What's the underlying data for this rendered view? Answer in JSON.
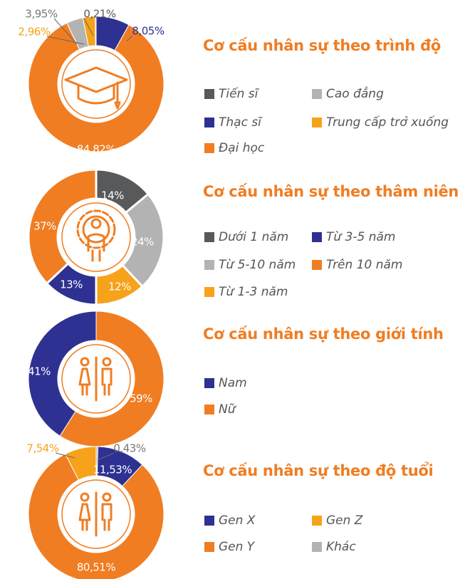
{
  "chart_data": [
    {
      "type": "pie",
      "title": "Cơ cấu nhân sự theo trình độ",
      "categories": [
        "Thạc sĩ",
        "Đại học",
        "Cao đẳng",
        "Trung cấp trở xuống",
        "Tiến sĩ"
      ],
      "values": [
        8.05,
        84.82,
        3.95,
        2.96,
        0.21
      ],
      "value_labels": [
        "8,05%",
        "84,82%",
        "3,95%",
        "2,96%",
        "0,21%"
      ],
      "colors": [
        "#2e3192",
        "#f07d22",
        "#b3b3b3",
        "#f7a21b",
        "#58595b"
      ]
    },
    {
      "type": "pie",
      "title": "Cơ cấu nhân sự theo thâm niên",
      "categories": [
        "Dưới 1 năm",
        "Từ 5-10 năm",
        "Từ 1-3 năm",
        "Từ 3-5 năm",
        "Trên 10 năm"
      ],
      "values": [
        14,
        24,
        12,
        13,
        37
      ],
      "value_labels": [
        "14%",
        "24%",
        "12%",
        "13%",
        "37%"
      ],
      "colors": [
        "#58595b",
        "#b3b3b3",
        "#f7a21b",
        "#2e3192",
        "#f07d22"
      ]
    },
    {
      "type": "pie",
      "title": "Cơ cấu nhân sự theo giới tính",
      "categories": [
        "Nữ",
        "Nam"
      ],
      "values": [
        59,
        41
      ],
      "value_labels": [
        "59%",
        "41%"
      ],
      "colors": [
        "#f07d22",
        "#2e3192"
      ]
    },
    {
      "type": "pie",
      "title": "Cơ cấu nhân sự theo độ tuổi",
      "categories": [
        "Khác",
        "Gen X",
        "Gen Y",
        "Gen Z"
      ],
      "values": [
        0.43,
        11.53,
        80.51,
        7.54
      ],
      "value_labels": [
        "0,43%",
        "11,53%",
        "80,51%",
        "7,54%"
      ],
      "colors": [
        "#b3b3b3",
        "#2e3192",
        "#f07d22",
        "#f7a21b"
      ]
    }
  ]
}
